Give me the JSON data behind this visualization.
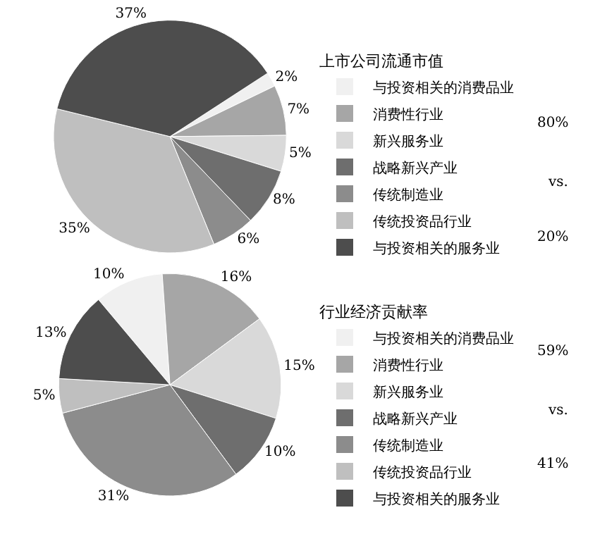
{
  "chart_data": [
    {
      "type": "pie",
      "legend_title": "上市公司流通市值",
      "legend": "right",
      "categories": [
        "与投资相关的消费品业",
        "消费性行业",
        "新兴服务业",
        "战略新兴产业",
        "传统制造业",
        "传统投资品行业",
        "与投资相关的服务业"
      ],
      "values": [
        2,
        7,
        5,
        8,
        6,
        35,
        37
      ],
      "value_labels": [
        "2%",
        "7%",
        "5%",
        "8%",
        "6%",
        "35%",
        "37%"
      ],
      "colors": [
        "#f0f0f0",
        "#a6a6a6",
        "#d9d9d9",
        "#6e6e6e",
        "#8c8c8c",
        "#bfbfbf",
        "#4d4d4d"
      ],
      "annotations": [
        "80%",
        "vs.",
        "20%"
      ]
    },
    {
      "type": "pie",
      "legend_title": "行业经济贡献率",
      "legend": "right",
      "categories": [
        "与投资相关的消费品业",
        "消费性行业",
        "新兴服务业",
        "战略新兴产业",
        "传统制造业",
        "传统投资品行业",
        "与投资相关的服务业"
      ],
      "values": [
        10,
        16,
        15,
        10,
        31,
        5,
        13
      ],
      "value_labels": [
        "10%",
        "16%",
        "15%",
        "10%",
        "31%",
        "5%",
        "13%"
      ],
      "colors": [
        "#f0f0f0",
        "#a6a6a6",
        "#d9d9d9",
        "#6e6e6e",
        "#8c8c8c",
        "#bfbfbf",
        "#4d4d4d"
      ],
      "annotations": [
        "59%",
        "vs.",
        "41%"
      ]
    }
  ]
}
